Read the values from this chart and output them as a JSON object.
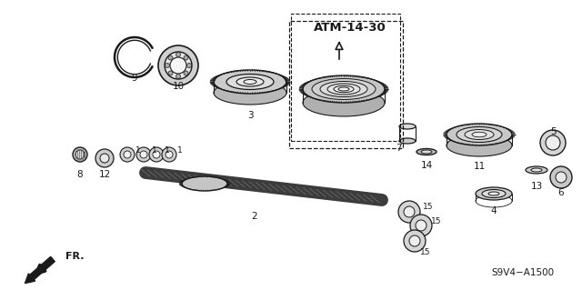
{
  "background_color": "#ffffff",
  "fig_width": 6.4,
  "fig_height": 3.19,
  "dpi": 100,
  "diagram_label": "ATM-14-30",
  "diagram_code": "S9V4−A1500",
  "direction_label": "FR.",
  "dark": "#1a1a1a",
  "mid": "#666666",
  "light": "#aaaaaa",
  "label_fontsize": 7.5,
  "atm_fontsize": 9.5,
  "code_fontsize": 7.5
}
